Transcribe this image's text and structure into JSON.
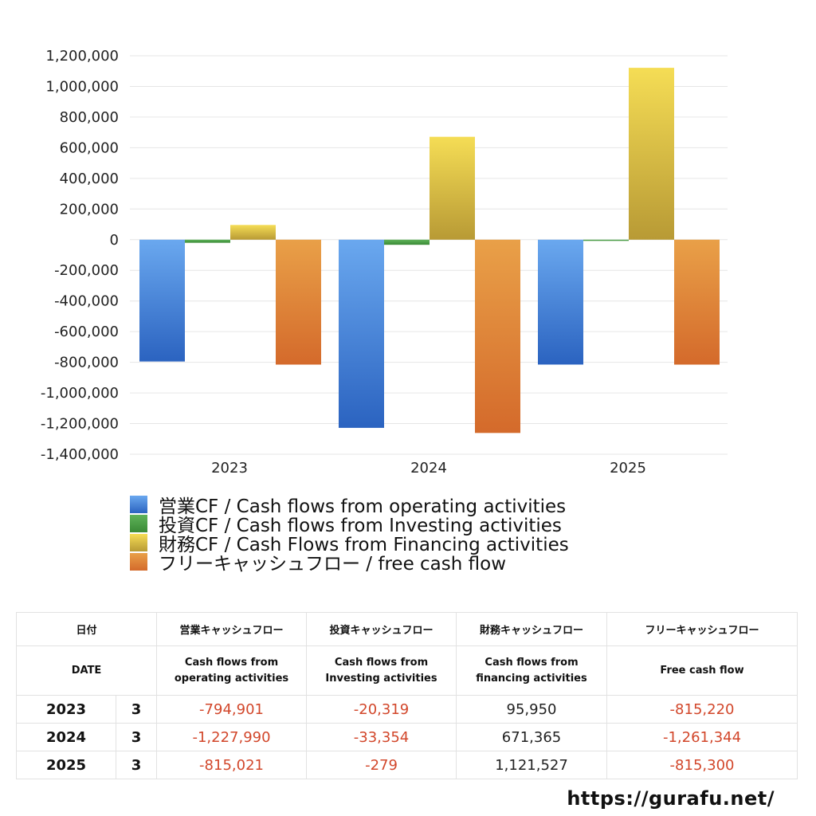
{
  "chart_data": {
    "type": "bar",
    "categories": [
      "2023",
      "2024",
      "2025"
    ],
    "series": [
      {
        "name": "営業CF / Cash flows from operating activities",
        "values": [
          -794901,
          -1227990,
          -815021
        ],
        "color_top": "#6aa8ef",
        "color_bottom": "#2b63c0"
      },
      {
        "name": "投資CF / Cash flows from Investing activities",
        "values": [
          -20319,
          -33354,
          -279
        ],
        "color_top": "#5fb35a",
        "color_bottom": "#3a8a36"
      },
      {
        "name": "財務CF / Cash Flows from Financing activities",
        "values": [
          95950,
          671365,
          1121527
        ],
        "color_top": "#f5dd55",
        "color_bottom": "#b89a35"
      },
      {
        "name": "フリーキャッシュフロー / free cash flow",
        "values": [
          -815220,
          -1261344,
          -815300
        ],
        "color_top": "#e9a048",
        "color_bottom": "#d46a2b"
      }
    ],
    "ylim": [
      -1400000,
      1200000
    ],
    "yticks": [
      1200000,
      1000000,
      800000,
      600000,
      400000,
      200000,
      0,
      -200000,
      -400000,
      -600000,
      -800000,
      -1000000,
      -1200000,
      -1400000
    ],
    "ytick_labels": [
      "1,200,000",
      "1,000,000",
      "800,000",
      "600,000",
      "400,000",
      "200,000",
      "0",
      "-200,000",
      "-400,000",
      "-600,000",
      "-800,000",
      "-1,000,000",
      "-1,200,000",
      "-1,400,000"
    ],
    "grid": true,
    "legend": "bottom"
  },
  "table": {
    "header_jp": [
      "日付",
      "営業キャッシュフロー",
      "投資キャッシュフロー",
      "財務キャッシュフロー",
      "フリーキャッシュフロー"
    ],
    "header_en": [
      "DATE",
      "Cash flows from\noperating activities",
      "Cash flows from\nInvesting activities",
      "Cash flows from\nfinancing activities",
      "Free cash flow"
    ],
    "rows": [
      {
        "year": "2023",
        "month": "3",
        "operating": "-794,901",
        "investing": "-20,319",
        "financing": "95,950",
        "free": "-815,220"
      },
      {
        "year": "2024",
        "month": "3",
        "operating": "-1,227,990",
        "investing": "-33,354",
        "financing": "671,365",
        "free": "-1,261,344"
      },
      {
        "year": "2025",
        "month": "3",
        "operating": "-815,021",
        "investing": "-279",
        "financing": "1,121,527",
        "free": "-815,300"
      }
    ]
  },
  "source": "https://gurafu.net/"
}
